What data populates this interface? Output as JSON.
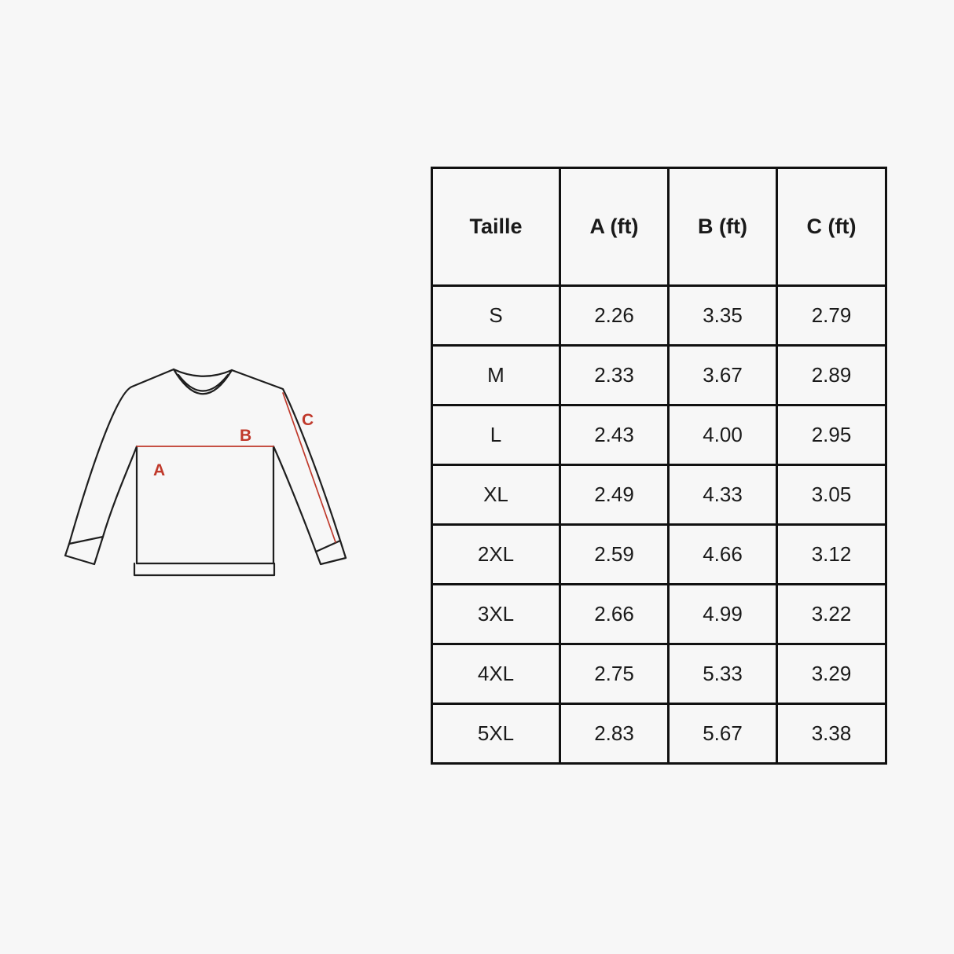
{
  "page": {
    "background_color": "#f7f7f7"
  },
  "size_table": {
    "headers": [
      "Taille",
      "A (ft)",
      "B (ft)",
      "C (ft)"
    ],
    "rows": [
      [
        "S",
        "2.26",
        "3.35",
        "2.79"
      ],
      [
        "M",
        "2.33",
        "3.67",
        "2.89"
      ],
      [
        "L",
        "2.43",
        "4.00",
        "2.95"
      ],
      [
        "XL",
        "2.49",
        "4.33",
        "3.05"
      ],
      [
        "2XL",
        "2.59",
        "4.66",
        "3.12"
      ],
      [
        "3XL",
        "2.66",
        "4.99",
        "3.22"
      ],
      [
        "4XL",
        "2.75",
        "5.33",
        "3.29"
      ],
      [
        "5XL",
        "2.83",
        "5.67",
        "3.38"
      ]
    ]
  },
  "garment_diagram": {
    "label_a": "A",
    "label_b": "B",
    "label_c": "C",
    "outline_color": "#1e1e1e",
    "measure_line_color": "#c0392b"
  },
  "chart_data": {
    "type": "table",
    "title": "Taille (size) chart in feet",
    "categories": [
      "S",
      "M",
      "L",
      "XL",
      "2XL",
      "3XL",
      "4XL",
      "5XL"
    ],
    "series": [
      {
        "name": "A (ft)",
        "values": [
          2.26,
          2.33,
          2.43,
          2.49,
          2.59,
          2.66,
          2.75,
          2.83
        ]
      },
      {
        "name": "B (ft)",
        "values": [
          3.35,
          3.67,
          4.0,
          4.33,
          4.66,
          4.99,
          5.33,
          5.67
        ]
      },
      {
        "name": "C (ft)",
        "values": [
          2.79,
          2.89,
          2.95,
          3.05,
          3.12,
          3.22,
          3.29,
          3.38
        ]
      }
    ]
  }
}
